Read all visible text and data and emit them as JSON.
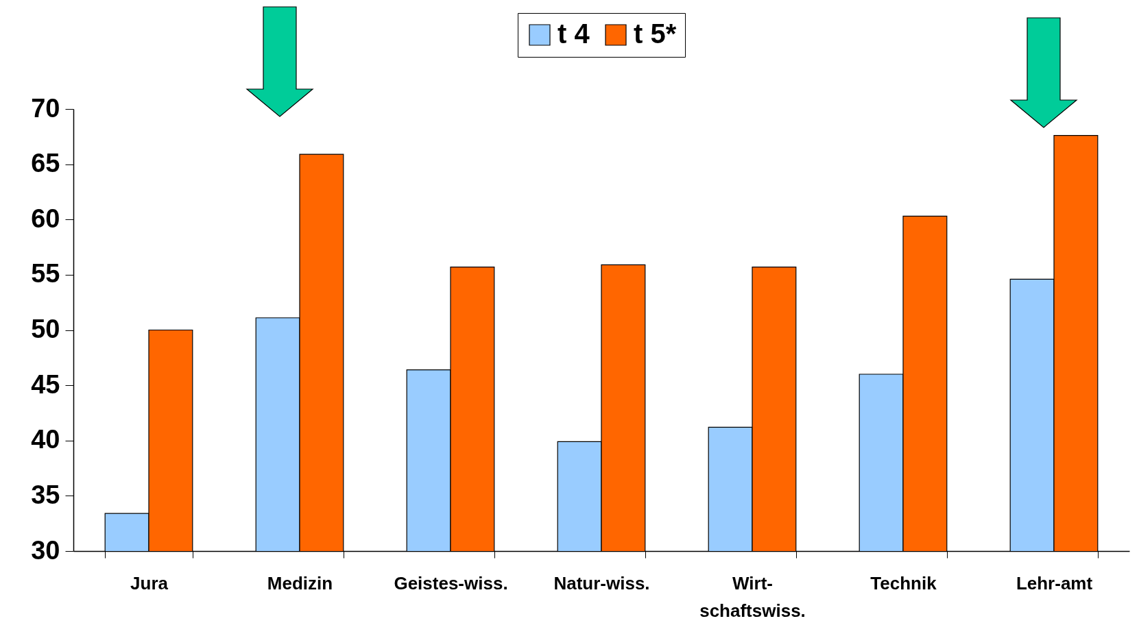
{
  "chart_data": {
    "type": "bar",
    "categories": [
      "Jura",
      "Medizin",
      "Geistes-wiss.",
      "Natur-wiss.",
      "Wirt-schaftswiss.",
      "Technik",
      "Lehr-amt"
    ],
    "series": [
      {
        "name": "t 4",
        "color": "#99ccff",
        "values": [
          33.4,
          51.1,
          46.4,
          39.9,
          41.2,
          46.0,
          54.6
        ]
      },
      {
        "name": "t 5*",
        "color": "#ff6600",
        "values": [
          50.0,
          65.9,
          55.7,
          55.9,
          55.7,
          60.3,
          67.6
        ]
      }
    ],
    "ylim": [
      30,
      70
    ],
    "yticks": [
      30,
      35,
      40,
      45,
      50,
      55,
      60,
      65,
      70
    ],
    "grid": false,
    "legend": "top"
  }
}
